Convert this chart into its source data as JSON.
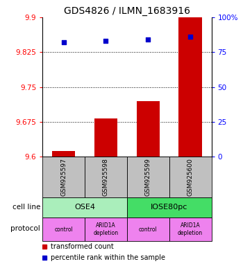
{
  "title": "GDS4826 / ILMN_1683916",
  "samples": [
    "GSM925597",
    "GSM925598",
    "GSM925599",
    "GSM925600"
  ],
  "bar_values": [
    9.613,
    9.683,
    9.72,
    9.9
  ],
  "bar_bottom": 9.6,
  "percentile_values": [
    82,
    83,
    84,
    86
  ],
  "ylim_left": [
    9.6,
    9.9
  ],
  "yticks_left": [
    9.6,
    9.675,
    9.75,
    9.825,
    9.9
  ],
  "ylim_right": [
    0,
    100
  ],
  "yticks_right": [
    0,
    25,
    50,
    75,
    100
  ],
  "cell_line_groups": [
    {
      "label": "OSE4",
      "start": 0,
      "end": 2,
      "color": "#aaeebb"
    },
    {
      "label": "IOSE80pc",
      "start": 2,
      "end": 4,
      "color": "#44dd66"
    }
  ],
  "protocol_labels": [
    "control",
    "ARID1A\ndepletion",
    "control",
    "ARID1A\ndepletion"
  ],
  "protocol_color": "#ee82ee",
  "bar_color": "#cc0000",
  "point_color": "#0000cc",
  "legend_bar_label": "transformed count",
  "legend_point_label": "percentile rank within the sample",
  "sample_box_color": "#c0c0c0",
  "grid_dotted_ticks": [
    9.675,
    9.75,
    9.825
  ]
}
